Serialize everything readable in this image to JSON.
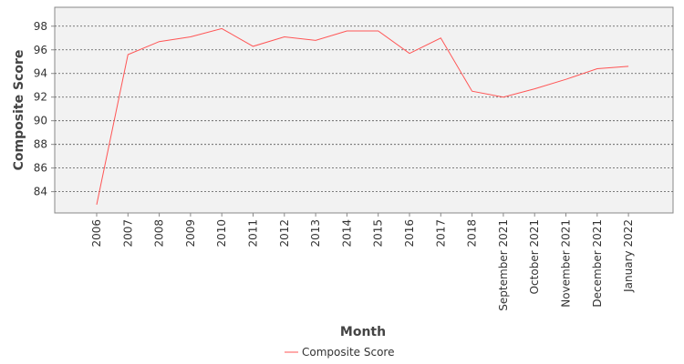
{
  "chart_data": {
    "type": "line",
    "title": "",
    "xlabel": "Month",
    "ylabel": "Composite Score",
    "categories": [
      "2006",
      "2007",
      "2008",
      "2009",
      "2010",
      "2011",
      "2012",
      "2013",
      "2014",
      "2015",
      "2016",
      "2017",
      "2018",
      "September 2021",
      "October 2021",
      "November 2021",
      "December 2021",
      "January 2022"
    ],
    "series": [
      {
        "name": "Composite Score",
        "color": "#ff5555",
        "values": [
          82.9,
          95.6,
          96.7,
          97.1,
          97.8,
          96.3,
          97.1,
          96.8,
          97.6,
          97.6,
          95.7,
          97.0,
          92.5,
          92.0,
          92.7,
          93.5,
          94.4,
          94.6
        ]
      }
    ],
    "ylim": [
      82.2,
      99.6
    ],
    "yticks": [
      84,
      86,
      88,
      90,
      92,
      94,
      96,
      98
    ],
    "grid": true,
    "legend_position": "bottom-center",
    "plot_background": "#f2f2f2"
  }
}
